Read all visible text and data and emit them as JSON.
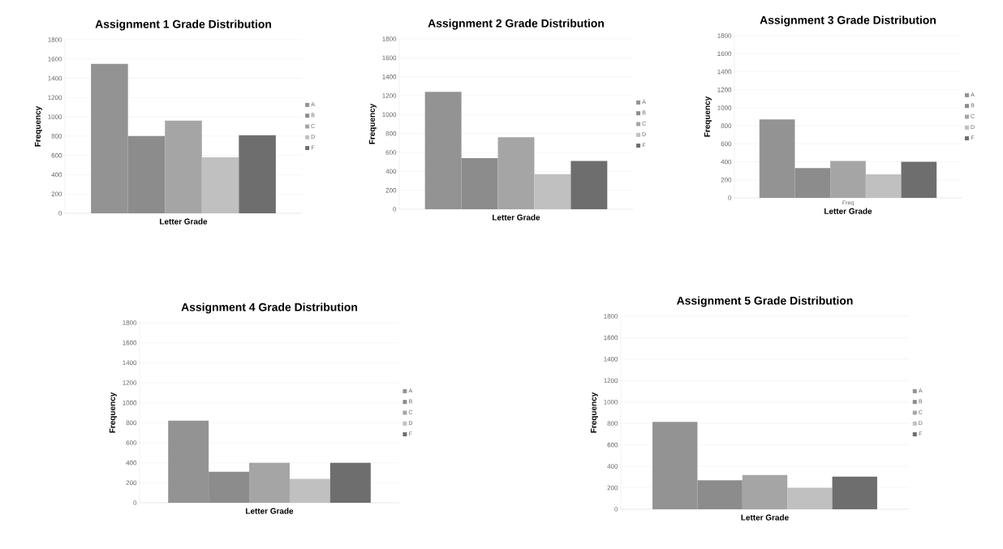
{
  "chart_data": [
    {
      "type": "bar",
      "title": "Assignment 1 Grade Distribution",
      "xlabel": "Letter Grade",
      "ylabel": "Frequency",
      "categories": [
        null
      ],
      "ylim": [
        0,
        1800
      ],
      "yticks": [
        0,
        200,
        400,
        600,
        800,
        1000,
        1200,
        1400,
        1600,
        1800
      ],
      "grid": "y",
      "legend": "right",
      "series": [
        {
          "name": "A",
          "color": "#939393",
          "values": [
            1550
          ]
        },
        {
          "name": "B",
          "color": "#8c8c8c",
          "values": [
            800
          ]
        },
        {
          "name": "C",
          "color": "#a5a5a5",
          "values": [
            960
          ]
        },
        {
          "name": "D",
          "color": "#c0c0c0",
          "values": [
            580
          ]
        },
        {
          "name": "F",
          "color": "#6e6e6e",
          "values": [
            810
          ]
        }
      ]
    },
    {
      "type": "bar",
      "title": "Assignment 2 Grade Distribution",
      "xlabel": "Letter Grade",
      "ylabel": "Frequency",
      "categories": [
        null
      ],
      "ylim": [
        0,
        1800
      ],
      "yticks": [
        0,
        200,
        400,
        600,
        800,
        1000,
        1200,
        1400,
        1600,
        1800
      ],
      "grid": "y",
      "legend": "right",
      "series": [
        {
          "name": "A",
          "color": "#939393",
          "values": [
            1240
          ]
        },
        {
          "name": "B",
          "color": "#8c8c8c",
          "values": [
            540
          ]
        },
        {
          "name": "C",
          "color": "#a5a5a5",
          "values": [
            760
          ]
        },
        {
          "name": "D",
          "color": "#c0c0c0",
          "values": [
            370
          ]
        },
        {
          "name": "F",
          "color": "#6e6e6e",
          "values": [
            510
          ]
        }
      ]
    },
    {
      "type": "bar",
      "title": "Assignment 3 Grade Distribution",
      "xlabel": "Letter Grade",
      "ylabel": "Frequency",
      "categories": [
        "Freq"
      ],
      "ylim": [
        0,
        1800
      ],
      "yticks": [
        0,
        200,
        400,
        600,
        800,
        1000,
        1200,
        1400,
        1600,
        1800
      ],
      "grid": "y",
      "legend": "right",
      "series": [
        {
          "name": "A",
          "color": "#939393",
          "values": [
            870
          ]
        },
        {
          "name": "B",
          "color": "#8c8c8c",
          "values": [
            330
          ]
        },
        {
          "name": "C",
          "color": "#a5a5a5",
          "values": [
            410
          ]
        },
        {
          "name": "D",
          "color": "#c0c0c0",
          "values": [
            260
          ]
        },
        {
          "name": "F",
          "color": "#6e6e6e",
          "values": [
            400
          ]
        }
      ]
    },
    {
      "type": "bar",
      "title": "Assignment 4 Grade Distribution",
      "xlabel": "Letter Grade",
      "ylabel": "Frequency",
      "categories": [
        null
      ],
      "ylim": [
        0,
        1800
      ],
      "yticks": [
        0,
        200,
        400,
        600,
        800,
        1000,
        1200,
        1400,
        1600,
        1800
      ],
      "grid": "y",
      "legend": "right",
      "series": [
        {
          "name": "A",
          "color": "#939393",
          "values": [
            820
          ]
        },
        {
          "name": "B",
          "color": "#8c8c8c",
          "values": [
            310
          ]
        },
        {
          "name": "C",
          "color": "#a5a5a5",
          "values": [
            400
          ]
        },
        {
          "name": "D",
          "color": "#c0c0c0",
          "values": [
            240
          ]
        },
        {
          "name": "F",
          "color": "#6e6e6e",
          "values": [
            400
          ]
        }
      ]
    },
    {
      "type": "bar",
      "title": "Assignment 5 Grade Distribution",
      "xlabel": "Letter Grade",
      "ylabel": "Frequency",
      "categories": [
        null
      ],
      "ylim": [
        0,
        1800
      ],
      "yticks": [
        0,
        200,
        400,
        600,
        800,
        1000,
        1200,
        1400,
        1600,
        1800
      ],
      "grid": "y",
      "legend": "right",
      "series": [
        {
          "name": "A",
          "color": "#939393",
          "values": [
            815
          ]
        },
        {
          "name": "B",
          "color": "#8c8c8c",
          "values": [
            270
          ]
        },
        {
          "name": "C",
          "color": "#a5a5a5",
          "values": [
            320
          ]
        },
        {
          "name": "D",
          "color": "#c0c0c0",
          "values": [
            200
          ]
        },
        {
          "name": "F",
          "color": "#6e6e6e",
          "values": [
            305
          ]
        }
      ]
    }
  ]
}
